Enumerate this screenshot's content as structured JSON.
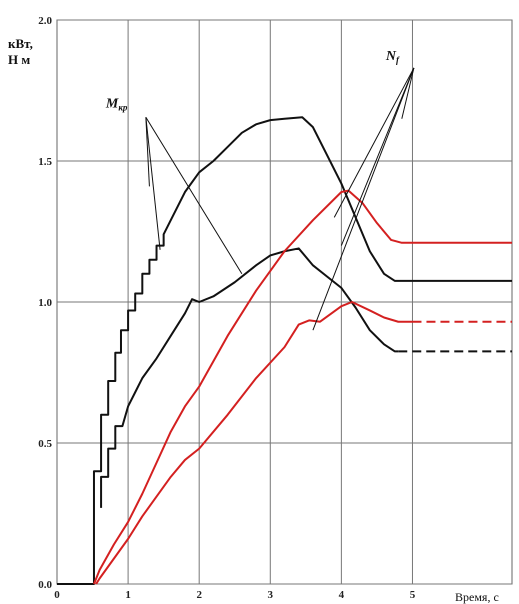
{
  "chart_data": {
    "type": "line",
    "ylabel_line1": "кВт,",
    "ylabel_line2": "Н м",
    "xlabel": "Время, с",
    "xlim": [
      0,
      6.4
    ],
    "ylim": [
      0,
      2.0
    ],
    "x_ticks": [
      "0",
      "1",
      "2",
      "3",
      "4",
      "5"
    ],
    "y_ticks": [
      "0.0",
      "0.5",
      "1.0",
      "1.5",
      "2.0"
    ],
    "grid": true,
    "series": [
      {
        "color": "#111111",
        "style": "solid",
        "points": [
          [
            0,
            0
          ],
          [
            0.52,
            0
          ],
          [
            0.52,
            0.4
          ],
          [
            0.62,
            0.4
          ],
          [
            0.62,
            0.6
          ],
          [
            0.72,
            0.6
          ],
          [
            0.72,
            0.72
          ],
          [
            0.82,
            0.72
          ],
          [
            0.82,
            0.82
          ],
          [
            0.9,
            0.82
          ],
          [
            0.9,
            0.9
          ],
          [
            1.0,
            0.9
          ],
          [
            1.0,
            0.97
          ],
          [
            1.1,
            0.97
          ],
          [
            1.1,
            1.03
          ],
          [
            1.2,
            1.03
          ],
          [
            1.2,
            1.1
          ],
          [
            1.3,
            1.1
          ],
          [
            1.3,
            1.15
          ],
          [
            1.4,
            1.15
          ],
          [
            1.4,
            1.2
          ],
          [
            1.5,
            1.2
          ],
          [
            1.5,
            1.24
          ],
          [
            1.6,
            1.29
          ],
          [
            1.8,
            1.39
          ],
          [
            2.0,
            1.46
          ],
          [
            2.2,
            1.5
          ],
          [
            2.4,
            1.55
          ],
          [
            2.6,
            1.6
          ],
          [
            2.8,
            1.63
          ],
          [
            3.0,
            1.645
          ],
          [
            3.2,
            1.65
          ],
          [
            3.45,
            1.655
          ],
          [
            3.6,
            1.62
          ],
          [
            3.8,
            1.52
          ],
          [
            4.0,
            1.42
          ],
          [
            4.2,
            1.3
          ],
          [
            4.4,
            1.18
          ],
          [
            4.6,
            1.1
          ],
          [
            4.75,
            1.075
          ],
          [
            6.4,
            1.075
          ]
        ]
      },
      {
        "color": "#111111",
        "style": "solid-dashed",
        "points": [
          [
            0.62,
            0.27
          ],
          [
            0.62,
            0.38
          ],
          [
            0.72,
            0.38
          ],
          [
            0.72,
            0.48
          ],
          [
            0.82,
            0.48
          ],
          [
            0.82,
            0.56
          ],
          [
            0.92,
            0.56
          ],
          [
            1.0,
            0.63
          ],
          [
            1.1,
            0.68
          ],
          [
            1.2,
            0.73
          ],
          [
            1.4,
            0.8
          ],
          [
            1.6,
            0.88
          ],
          [
            1.8,
            0.96
          ],
          [
            1.9,
            1.01
          ],
          [
            2.0,
            1.0
          ],
          [
            2.2,
            1.02
          ],
          [
            2.5,
            1.07
          ],
          [
            2.8,
            1.13
          ],
          [
            3.0,
            1.165
          ],
          [
            3.2,
            1.18
          ],
          [
            3.4,
            1.19
          ],
          [
            3.6,
            1.13
          ],
          [
            3.8,
            1.09
          ],
          [
            4.0,
            1.05
          ],
          [
            4.2,
            0.98
          ],
          [
            4.4,
            0.9
          ],
          [
            4.6,
            0.85
          ],
          [
            4.75,
            0.825
          ],
          [
            6.4,
            0.825
          ]
        ],
        "dash_from": 4.8
      },
      {
        "color": "#d42020",
        "style": "solid",
        "points": [
          [
            0.52,
            0
          ],
          [
            0.6,
            0.05
          ],
          [
            0.8,
            0.14
          ],
          [
            1.0,
            0.22
          ],
          [
            1.2,
            0.32
          ],
          [
            1.4,
            0.43
          ],
          [
            1.6,
            0.54
          ],
          [
            1.8,
            0.63
          ],
          [
            2.0,
            0.7
          ],
          [
            2.4,
            0.88
          ],
          [
            2.8,
            1.04
          ],
          [
            3.2,
            1.18
          ],
          [
            3.6,
            1.29
          ],
          [
            4.0,
            1.39
          ],
          [
            4.1,
            1.395
          ],
          [
            4.3,
            1.35
          ],
          [
            4.5,
            1.28
          ],
          [
            4.7,
            1.22
          ],
          [
            4.85,
            1.21
          ],
          [
            6.4,
            1.21
          ]
        ]
      },
      {
        "color": "#d42020",
        "style": "solid-dashed",
        "points": [
          [
            0.55,
            0
          ],
          [
            0.6,
            0.02
          ],
          [
            0.8,
            0.09
          ],
          [
            1.0,
            0.16
          ],
          [
            1.2,
            0.24
          ],
          [
            1.4,
            0.31
          ],
          [
            1.6,
            0.38
          ],
          [
            1.8,
            0.44
          ],
          [
            2.0,
            0.48
          ],
          [
            2.4,
            0.6
          ],
          [
            2.8,
            0.73
          ],
          [
            3.2,
            0.84
          ],
          [
            3.4,
            0.92
          ],
          [
            3.55,
            0.935
          ],
          [
            3.7,
            0.93
          ],
          [
            4.0,
            0.985
          ],
          [
            4.15,
            1.0
          ],
          [
            4.4,
            0.97
          ],
          [
            4.6,
            0.945
          ],
          [
            4.8,
            0.93
          ],
          [
            6.4,
            0.93
          ]
        ],
        "dash_from": 5.0
      }
    ],
    "annotations": [
      {
        "label": "M",
        "sub": "кр",
        "x": 1.25,
        "y": 1.655,
        "targets": [
          [
            1.45,
            1.185
          ],
          [
            1.3,
            1.41
          ],
          [
            2.6,
            1.1
          ]
        ]
      },
      {
        "label": "N",
        "sub": "f",
        "x": 5.02,
        "y": 1.83,
        "targets": [
          [
            4.85,
            1.65
          ],
          [
            3.9,
            1.3
          ],
          [
            4.0,
            1.2
          ],
          [
            3.6,
            0.9
          ]
        ]
      }
    ]
  }
}
